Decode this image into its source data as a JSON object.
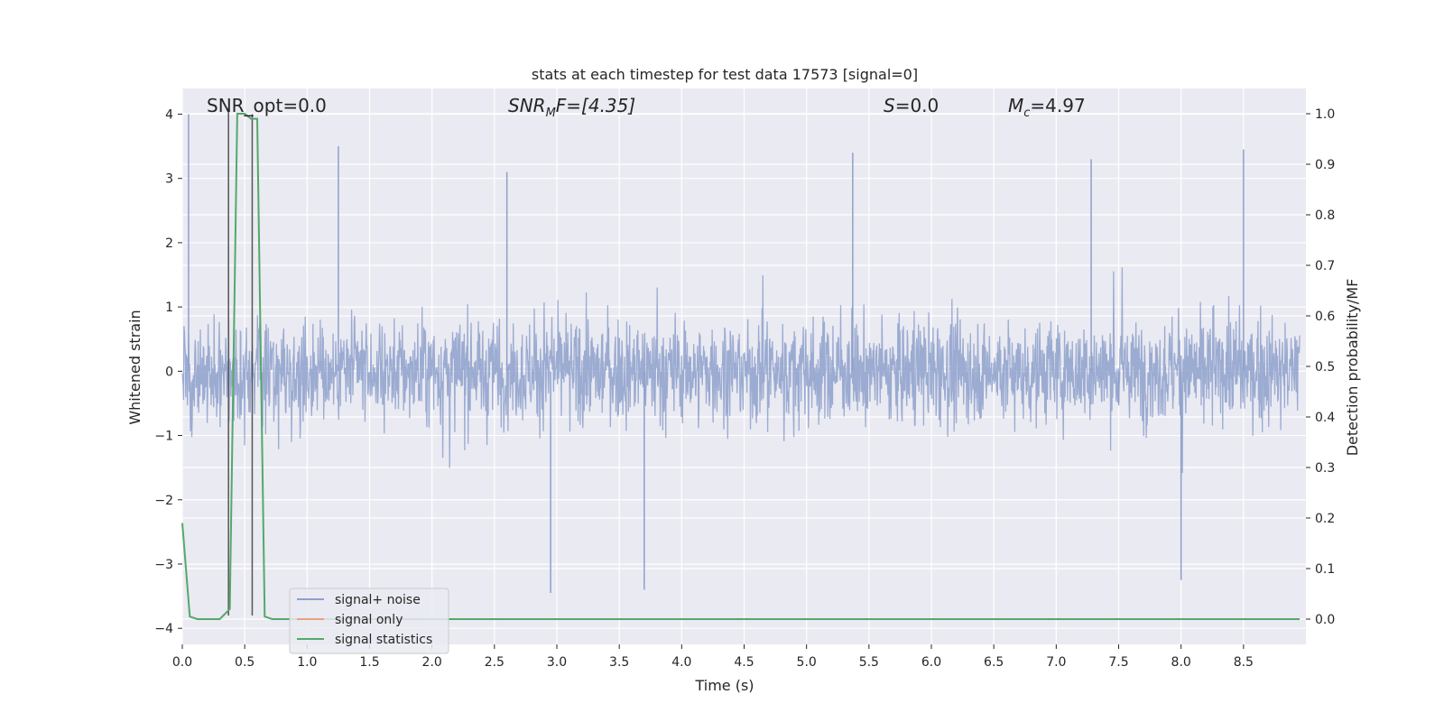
{
  "chart_data": {
    "type": "line",
    "title": "stats at each timestep for test data 17573 [signal=0]",
    "xlabel": "Time (s)",
    "ylabel_left": "Whitened strain",
    "ylabel_right": "Detection probability/MF",
    "xlim": [
      0.0,
      9.0
    ],
    "ylim_left": [
      -4.25,
      4.4
    ],
    "ylim_right": [
      -0.05,
      1.05
    ],
    "xticks": [
      0.0,
      0.5,
      1.0,
      1.5,
      2.0,
      2.5,
      3.0,
      3.5,
      4.0,
      4.5,
      5.0,
      5.5,
      6.0,
      6.5,
      7.0,
      7.5,
      8.0,
      8.5
    ],
    "xtick_labels": [
      "0.0",
      "0.5",
      "1.0",
      "1.5",
      "2.0",
      "2.5",
      "3.0",
      "3.5",
      "4.0",
      "4.5",
      "5.0",
      "5.5",
      "6.0",
      "6.5",
      "7.0",
      "7.5",
      "8.0",
      "8.5"
    ],
    "yticks_left": [
      -4,
      -3,
      -2,
      -1,
      0,
      1,
      2,
      3,
      4
    ],
    "ytick_labels_left": [
      "−4",
      "−3",
      "−2",
      "−1",
      "0",
      "1",
      "2",
      "3",
      "4"
    ],
    "yticks_right": [
      0.0,
      0.1,
      0.2,
      0.3,
      0.4,
      0.5,
      0.6,
      0.7,
      0.8,
      0.9,
      1.0
    ],
    "ytick_labels_right": [
      "0.0",
      "0.1",
      "0.2",
      "0.3",
      "0.4",
      "0.5",
      "0.6",
      "0.7",
      "0.8",
      "0.9",
      "1.0"
    ],
    "grid": true,
    "legend": {
      "placement": "lower-left",
      "entries": [
        {
          "name": "signal+ noise",
          "color": "#8da0cb"
        },
        {
          "name": "signal only",
          "color": "#e7a27e"
        },
        {
          "name": "signal statistics",
          "color": "#55a868"
        }
      ]
    },
    "annotations": {
      "snr_opt": "SNR_opt=0.0",
      "snr_mf_symbol": "SNR",
      "snr_mf_sub": "M",
      "snr_mf_rest": "F=[4.35]",
      "s_symbol": "S",
      "s_rest": "=0.0",
      "mc_symbol": "M",
      "mc_sub": "c",
      "mc_rest": "=4.97"
    },
    "noise_series": {
      "name": "signal+ noise",
      "color": "#8da0cb",
      "axis": "left",
      "description_x_range": [
        0.0,
        8.95
      ],
      "typical_envelope": [
        -1.5,
        1.5
      ],
      "peak_spikes": [
        {
          "x": 0.05,
          "y": 4.0
        },
        {
          "x": 1.25,
          "y": 3.5
        },
        {
          "x": 2.6,
          "y": 3.1
        },
        {
          "x": 5.37,
          "y": 3.4
        },
        {
          "x": 7.28,
          "y": 3.3
        },
        {
          "x": 8.5,
          "y": 3.45
        },
        {
          "x": 2.95,
          "y": -3.45
        },
        {
          "x": 3.7,
          "y": -3.4
        },
        {
          "x": 8.0,
          "y": -3.25
        },
        {
          "x": 7.5,
          "y": -0.5
        }
      ]
    },
    "statistics_series": {
      "name": "signal statistics",
      "color": "#55a868",
      "axis": "right",
      "x": [
        0.0,
        0.06,
        0.12,
        0.2,
        0.3,
        0.38,
        0.44,
        0.5,
        0.55,
        0.6,
        0.66,
        0.72,
        0.8,
        1.0,
        2.0,
        3.0,
        4.0,
        5.0,
        6.0,
        7.0,
        8.0,
        8.95
      ],
      "y": [
        0.19,
        0.005,
        0.0,
        0.0,
        0.0,
        0.02,
        1.0,
        1.0,
        0.99,
        0.99,
        0.005,
        0.0,
        0.0,
        0.0,
        0.0,
        0.0,
        0.0,
        0.0,
        0.0,
        0.0,
        0.0,
        0.0
      ]
    },
    "vertical_markers": [
      {
        "x": 0.37,
        "y_top_left": 4.1,
        "y_bottom_left": -3.8
      },
      {
        "x": 0.56,
        "y_top_left": 4.0,
        "y_bottom_left": -3.8
      }
    ]
  }
}
